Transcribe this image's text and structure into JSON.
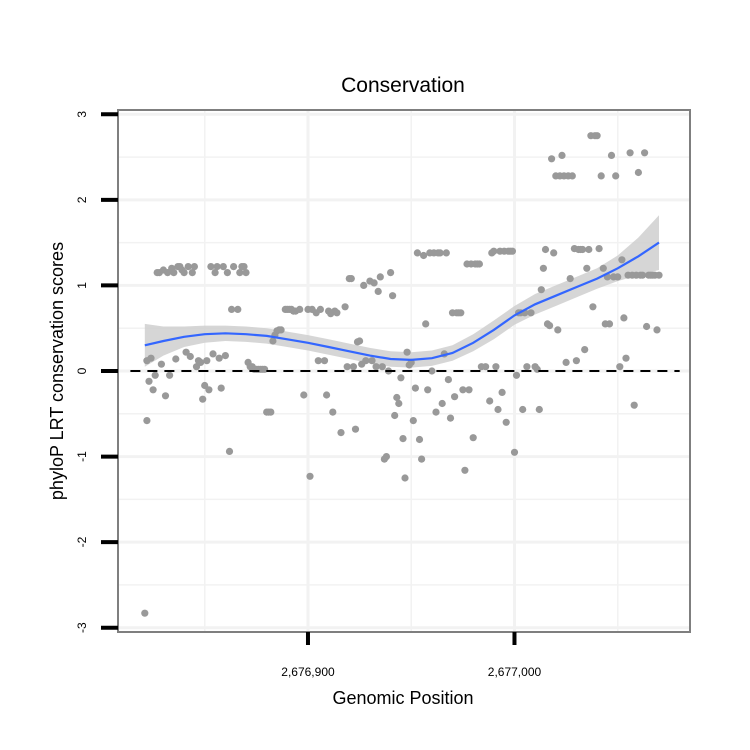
{
  "chart_data": {
    "type": "scatter",
    "title": "Conservation",
    "xlabel": "Genomic Position",
    "ylabel": "phyloP LRT conservation scores",
    "xlim": [
      2676808,
      2677085
    ],
    "ylim": [
      -3.05,
      3.05
    ],
    "x_ticks": [
      2676900,
      2677000
    ],
    "x_tick_labels": [
      "2,676,900",
      "2,677,000"
    ],
    "y_ticks": [
      -3,
      -2,
      -1,
      0,
      1,
      2,
      3
    ],
    "y_tick_labels": [
      "-3",
      "-2",
      "-1",
      "0",
      "1",
      "2",
      "3"
    ],
    "x_minor_gridlines": [
      2676850,
      2676950,
      2677050
    ],
    "y_minor_gridlines": [
      -2.5,
      -1.5,
      -0.5,
      0.5,
      1.5,
      2.5
    ],
    "grid": true,
    "reference_line": {
      "y": 0,
      "style": "dashed"
    },
    "colors": {
      "points": "#999999",
      "smooth": "#3366FF",
      "band": "#CCCCCC",
      "grid": "#F2F2F2",
      "frame": "#7F7F7F"
    },
    "points": [
      [
        2676821,
        -2.83
      ],
      [
        2676822,
        -0.58
      ],
      [
        2676822,
        0.12
      ],
      [
        2676823,
        -0.12
      ],
      [
        2676824,
        0.15
      ],
      [
        2676825,
        -0.22
      ],
      [
        2676826,
        -0.05
      ],
      [
        2676827,
        1.15
      ],
      [
        2676828,
        1.15
      ],
      [
        2676829,
        0.08
      ],
      [
        2676830,
        1.18
      ],
      [
        2676831,
        -0.29
      ],
      [
        2676832,
        1.15
      ],
      [
        2676833,
        -0.05
      ],
      [
        2676834,
        1.2
      ],
      [
        2676835,
        1.15
      ],
      [
        2676836,
        0.14
      ],
      [
        2676837,
        1.22
      ],
      [
        2676838,
        1.22
      ],
      [
        2676839,
        1.18
      ],
      [
        2676840,
        1.15
      ],
      [
        2676841,
        0.22
      ],
      [
        2676842,
        1.22
      ],
      [
        2676843,
        0.17
      ],
      [
        2676844,
        1.15
      ],
      [
        2676845,
        1.22
      ],
      [
        2676846,
        0.05
      ],
      [
        2676847,
        0.12
      ],
      [
        2676848,
        0.1
      ],
      [
        2676849,
        -0.33
      ],
      [
        2676850,
        -0.17
      ],
      [
        2676851,
        0.12
      ],
      [
        2676852,
        -0.22
      ],
      [
        2676853,
        1.22
      ],
      [
        2676854,
        0.2
      ],
      [
        2676855,
        1.15
      ],
      [
        2676856,
        1.22
      ],
      [
        2676857,
        0.15
      ],
      [
        2676858,
        -0.2
      ],
      [
        2676859,
        1.22
      ],
      [
        2676860,
        0.18
      ],
      [
        2676861,
        1.15
      ],
      [
        2676862,
        -0.94
      ],
      [
        2676863,
        0.72
      ],
      [
        2676864,
        1.22
      ],
      [
        2676866,
        0.72
      ],
      [
        2676867,
        1.15
      ],
      [
        2676868,
        1.22
      ],
      [
        2676869,
        1.22
      ],
      [
        2676870,
        1.15
      ],
      [
        2676871,
        0.1
      ],
      [
        2676872,
        0.05
      ],
      [
        2676873,
        0.05
      ],
      [
        2676874,
        0.02
      ],
      [
        2676875,
        0.02
      ],
      [
        2676876,
        0.02
      ],
      [
        2676877,
        0.02
      ],
      [
        2676878,
        0.02
      ],
      [
        2676879,
        0.02
      ],
      [
        2676880,
        -0.48
      ],
      [
        2676881,
        -0.48
      ],
      [
        2676882,
        -0.48
      ],
      [
        2676883,
        0.35
      ],
      [
        2676884,
        0.42
      ],
      [
        2676885,
        0.47
      ],
      [
        2676886,
        0.48
      ],
      [
        2676887,
        0.48
      ],
      [
        2676889,
        0.72
      ],
      [
        2676890,
        0.72
      ],
      [
        2676891,
        0.72
      ],
      [
        2676892,
        0.72
      ],
      [
        2676893,
        0.7
      ],
      [
        2676894,
        0.7
      ],
      [
        2676896,
        0.72
      ],
      [
        2676898,
        -0.28
      ],
      [
        2676900,
        0.72
      ],
      [
        2676901,
        -1.23
      ],
      [
        2676902,
        0.72
      ],
      [
        2676904,
        0.68
      ],
      [
        2676905,
        0.12
      ],
      [
        2676906,
        0.72
      ],
      [
        2676908,
        0.12
      ],
      [
        2676909,
        -0.28
      ],
      [
        2676910,
        0.7
      ],
      [
        2676911,
        0.67
      ],
      [
        2676912,
        -0.48
      ],
      [
        2676913,
        0.7
      ],
      [
        2676914,
        0.68
      ],
      [
        2676916,
        -0.72
      ],
      [
        2676918,
        0.75
      ],
      [
        2676919,
        0.05
      ],
      [
        2676920,
        1.08
      ],
      [
        2676921,
        1.08
      ],
      [
        2676922,
        0.05
      ],
      [
        2676923,
        -0.68
      ],
      [
        2676924,
        0.34
      ],
      [
        2676925,
        0.35
      ],
      [
        2676926,
        0.08
      ],
      [
        2676927,
        1.0
      ],
      [
        2676928,
        0.12
      ],
      [
        2676930,
        1.05
      ],
      [
        2676931,
        0.12
      ],
      [
        2676932,
        1.03
      ],
      [
        2676933,
        0.05
      ],
      [
        2676934,
        0.93
      ],
      [
        2676935,
        1.1
      ],
      [
        2676936,
        0.05
      ],
      [
        2676937,
        -1.03
      ],
      [
        2676938,
        -1.0
      ],
      [
        2676939,
        0.0
      ],
      [
        2676940,
        1.15
      ],
      [
        2676941,
        0.88
      ],
      [
        2676942,
        -0.52
      ],
      [
        2676943,
        -0.31
      ],
      [
        2676944,
        -0.38
      ],
      [
        2676945,
        -0.08
      ],
      [
        2676946,
        -0.79
      ],
      [
        2676947,
        -1.25
      ],
      [
        2676948,
        0.22
      ],
      [
        2676949,
        0.07
      ],
      [
        2676950,
        0.1
      ],
      [
        2676951,
        -0.58
      ],
      [
        2676952,
        -0.2
      ],
      [
        2676953,
        1.38
      ],
      [
        2676954,
        -0.8
      ],
      [
        2676955,
        -1.03
      ],
      [
        2676956,
        1.35
      ],
      [
        2676957,
        0.55
      ],
      [
        2676958,
        -0.22
      ],
      [
        2676959,
        1.38
      ],
      [
        2676960,
        0.0
      ],
      [
        2676961,
        1.38
      ],
      [
        2676962,
        -0.48
      ],
      [
        2676963,
        1.38
      ],
      [
        2676964,
        1.38
      ],
      [
        2676965,
        -0.38
      ],
      [
        2676966,
        0.2
      ],
      [
        2676967,
        1.38
      ],
      [
        2676968,
        -0.1
      ],
      [
        2676969,
        -0.55
      ],
      [
        2676970,
        0.68
      ],
      [
        2676971,
        -0.3
      ],
      [
        2676972,
        0.68
      ],
      [
        2676973,
        0.68
      ],
      [
        2676974,
        0.68
      ],
      [
        2676975,
        -0.22
      ],
      [
        2676976,
        -1.16
      ],
      [
        2676977,
        1.25
      ],
      [
        2676978,
        -0.22
      ],
      [
        2676979,
        1.25
      ],
      [
        2676980,
        -0.78
      ],
      [
        2676981,
        1.25
      ],
      [
        2676982,
        1.25
      ],
      [
        2676983,
        1.25
      ],
      [
        2676984,
        0.05
      ],
      [
        2676986,
        0.05
      ],
      [
        2676988,
        -0.35
      ],
      [
        2676989,
        1.38
      ],
      [
        2676990,
        1.4
      ],
      [
        2676991,
        0.05
      ],
      [
        2676992,
        -0.45
      ],
      [
        2676993,
        1.4
      ],
      [
        2676994,
        -0.25
      ],
      [
        2676995,
        1.4
      ],
      [
        2676996,
        -0.6
      ],
      [
        2676997,
        1.4
      ],
      [
        2676998,
        1.4
      ],
      [
        2676999,
        1.4
      ],
      [
        2677000,
        -0.95
      ],
      [
        2677001,
        -0.05
      ],
      [
        2677002,
        0.68
      ],
      [
        2677003,
        0.68
      ],
      [
        2677004,
        -0.45
      ],
      [
        2677005,
        0.68
      ],
      [
        2677006,
        0.05
      ],
      [
        2677008,
        0.68
      ],
      [
        2677010,
        0.05
      ],
      [
        2677011,
        0.02
      ],
      [
        2677012,
        -0.45
      ],
      [
        2677013,
        0.95
      ],
      [
        2677014,
        1.2
      ],
      [
        2677015,
        1.42
      ],
      [
        2677016,
        0.55
      ],
      [
        2677017,
        0.53
      ],
      [
        2677018,
        2.48
      ],
      [
        2677019,
        1.38
      ],
      [
        2677020,
        2.28
      ],
      [
        2677021,
        0.48
      ],
      [
        2677022,
        2.28
      ],
      [
        2677023,
        2.52
      ],
      [
        2677024,
        2.28
      ],
      [
        2677025,
        0.1
      ],
      [
        2677026,
        2.28
      ],
      [
        2677027,
        1.08
      ],
      [
        2677028,
        2.28
      ],
      [
        2677029,
        1.43
      ],
      [
        2677030,
        0.12
      ],
      [
        2677031,
        1.42
      ],
      [
        2677032,
        1.42
      ],
      [
        2677033,
        1.42
      ],
      [
        2677034,
        0.25
      ],
      [
        2677035,
        1.2
      ],
      [
        2677036,
        1.42
      ],
      [
        2677037,
        2.75
      ],
      [
        2677038,
        0.75
      ],
      [
        2677039,
        2.75
      ],
      [
        2677040,
        2.75
      ],
      [
        2677041,
        1.43
      ],
      [
        2677042,
        2.28
      ],
      [
        2677043,
        1.2
      ],
      [
        2677044,
        0.55
      ],
      [
        2677045,
        1.1
      ],
      [
        2677046,
        0.55
      ],
      [
        2677047,
        2.52
      ],
      [
        2677048,
        1.1
      ],
      [
        2677049,
        2.28
      ],
      [
        2677050,
        1.1
      ],
      [
        2677051,
        0.05
      ],
      [
        2677052,
        1.3
      ],
      [
        2677053,
        0.62
      ],
      [
        2677054,
        0.15
      ],
      [
        2677055,
        1.12
      ],
      [
        2677056,
        2.55
      ],
      [
        2677057,
        1.12
      ],
      [
        2677058,
        -0.4
      ],
      [
        2677059,
        1.12
      ],
      [
        2677060,
        2.32
      ],
      [
        2677061,
        1.12
      ],
      [
        2677062,
        1.12
      ],
      [
        2677063,
        2.55
      ],
      [
        2677064,
        0.52
      ],
      [
        2677065,
        1.12
      ],
      [
        2677066,
        1.12
      ],
      [
        2677067,
        1.12
      ],
      [
        2677068,
        1.12
      ],
      [
        2677069,
        0.48
      ],
      [
        2677070,
        1.12
      ]
    ],
    "smooth": {
      "x": [
        2676821,
        2676830,
        2676840,
        2676850,
        2676860,
        2676870,
        2676880,
        2676890,
        2676900,
        2676910,
        2676920,
        2676930,
        2676940,
        2676950,
        2676960,
        2676970,
        2676980,
        2676990,
        2677000,
        2677010,
        2677020,
        2677030,
        2677040,
        2677050,
        2677060,
        2677070
      ],
      "y": [
        0.3,
        0.35,
        0.4,
        0.43,
        0.44,
        0.43,
        0.41,
        0.37,
        0.33,
        0.28,
        0.23,
        0.18,
        0.14,
        0.13,
        0.15,
        0.21,
        0.33,
        0.48,
        0.65,
        0.78,
        0.88,
        0.98,
        1.08,
        1.2,
        1.34,
        1.5
      ],
      "lower": [
        0.05,
        0.18,
        0.28,
        0.33,
        0.35,
        0.34,
        0.32,
        0.28,
        0.24,
        0.19,
        0.14,
        0.09,
        0.05,
        0.04,
        0.06,
        0.12,
        0.23,
        0.37,
        0.54,
        0.66,
        0.76,
        0.86,
        0.96,
        1.05,
        1.12,
        1.18
      ],
      "upper": [
        0.55,
        0.52,
        0.52,
        0.53,
        0.53,
        0.52,
        0.5,
        0.46,
        0.42,
        0.37,
        0.32,
        0.27,
        0.23,
        0.22,
        0.24,
        0.3,
        0.43,
        0.59,
        0.76,
        0.9,
        1.0,
        1.1,
        1.2,
        1.35,
        1.56,
        1.82
      ]
    }
  }
}
